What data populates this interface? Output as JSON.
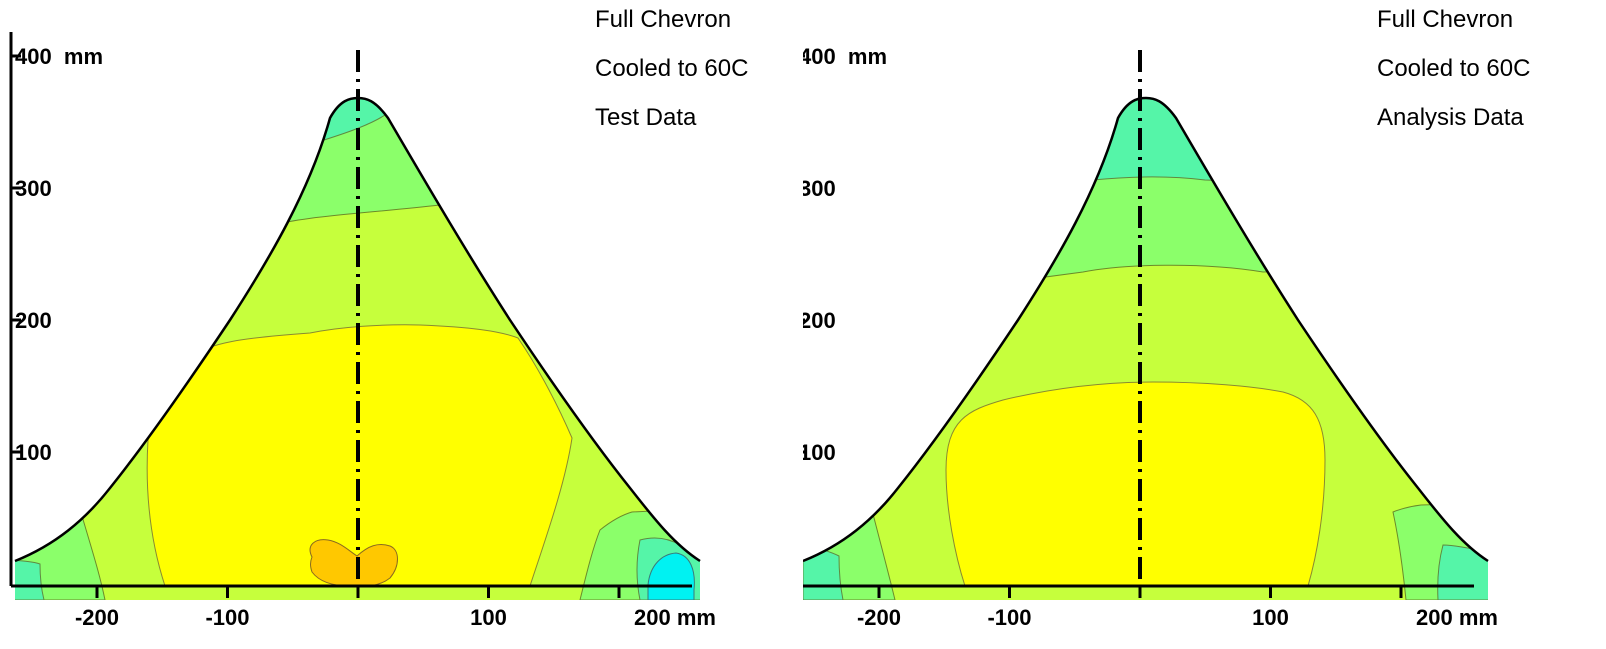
{
  "chart_data": [
    {
      "type": "contour",
      "shape": "chevron",
      "annotations": [
        "Full Chevron",
        "Cooled to 60C",
        "Test Data"
      ],
      "y_axis": {
        "range": [
          0,
          400
        ],
        "ticks": [
          {
            "value": 100,
            "label": "100"
          },
          {
            "value": 200,
            "label": "200"
          },
          {
            "value": 300,
            "label": "300"
          },
          {
            "value": 400,
            "label": "400  mm"
          }
        ]
      },
      "x_axis": {
        "range": [
          -270,
          255
        ],
        "ticks": [
          {
            "value": -200,
            "label": "-200"
          },
          {
            "value": -100,
            "label": "-100"
          },
          {
            "value": 0,
            "label": ""
          },
          {
            "value": 100,
            "label": "100"
          },
          {
            "value": 200,
            "label": "200 mm"
          }
        ]
      },
      "outline": {
        "x": [
          -270,
          -240,
          -200,
          -160,
          -120,
          -80,
          -40,
          -10,
          0,
          10,
          40,
          80,
          120,
          160,
          200,
          230,
          255
        ],
        "y": [
          20,
          35,
          65,
          118,
          170,
          222,
          274,
          358,
          368,
          366,
          344,
          292,
          232,
          170,
          110,
          55,
          23
        ]
      },
      "regions": [
        {
          "name": "cyan-green zone",
          "color": "#55f5a8"
        },
        {
          "name": "green zone",
          "color": "#8bff6a"
        },
        {
          "name": "yellow-green zone",
          "color": "#c6ff3c"
        },
        {
          "name": "yellow zone",
          "color": "#ffff00"
        },
        {
          "name": "orange zone",
          "color": "#ffc800"
        },
        {
          "name": "cyan zone",
          "color": "#00f2f2"
        }
      ]
    },
    {
      "type": "contour",
      "shape": "chevron",
      "annotations": [
        "Full Chevron",
        "Cooled to 60C",
        "Analysis Data"
      ],
      "y_axis": {
        "range": [
          0,
          400
        ],
        "ticks": [
          {
            "value": 100,
            "label": "100"
          },
          {
            "value": 200,
            "label": "200"
          },
          {
            "value": 300,
            "label": "300"
          },
          {
            "value": 400,
            "label": "400  mm"
          }
        ]
      },
      "x_axis": {
        "range": [
          -270,
          255
        ],
        "ticks": [
          {
            "value": -200,
            "label": "-200"
          },
          {
            "value": -100,
            "label": "-100"
          },
          {
            "value": 0,
            "label": ""
          },
          {
            "value": 100,
            "label": "100"
          },
          {
            "value": 200,
            "label": "200 mm"
          }
        ]
      },
      "regions": [
        {
          "name": "cyan-green zone",
          "color": "#55f5a8"
        },
        {
          "name": "green zone",
          "color": "#8bff6a"
        },
        {
          "name": "yellow-green zone",
          "color": "#c6ff3c"
        },
        {
          "name": "yellow zone",
          "color": "#ffff00"
        }
      ]
    }
  ]
}
